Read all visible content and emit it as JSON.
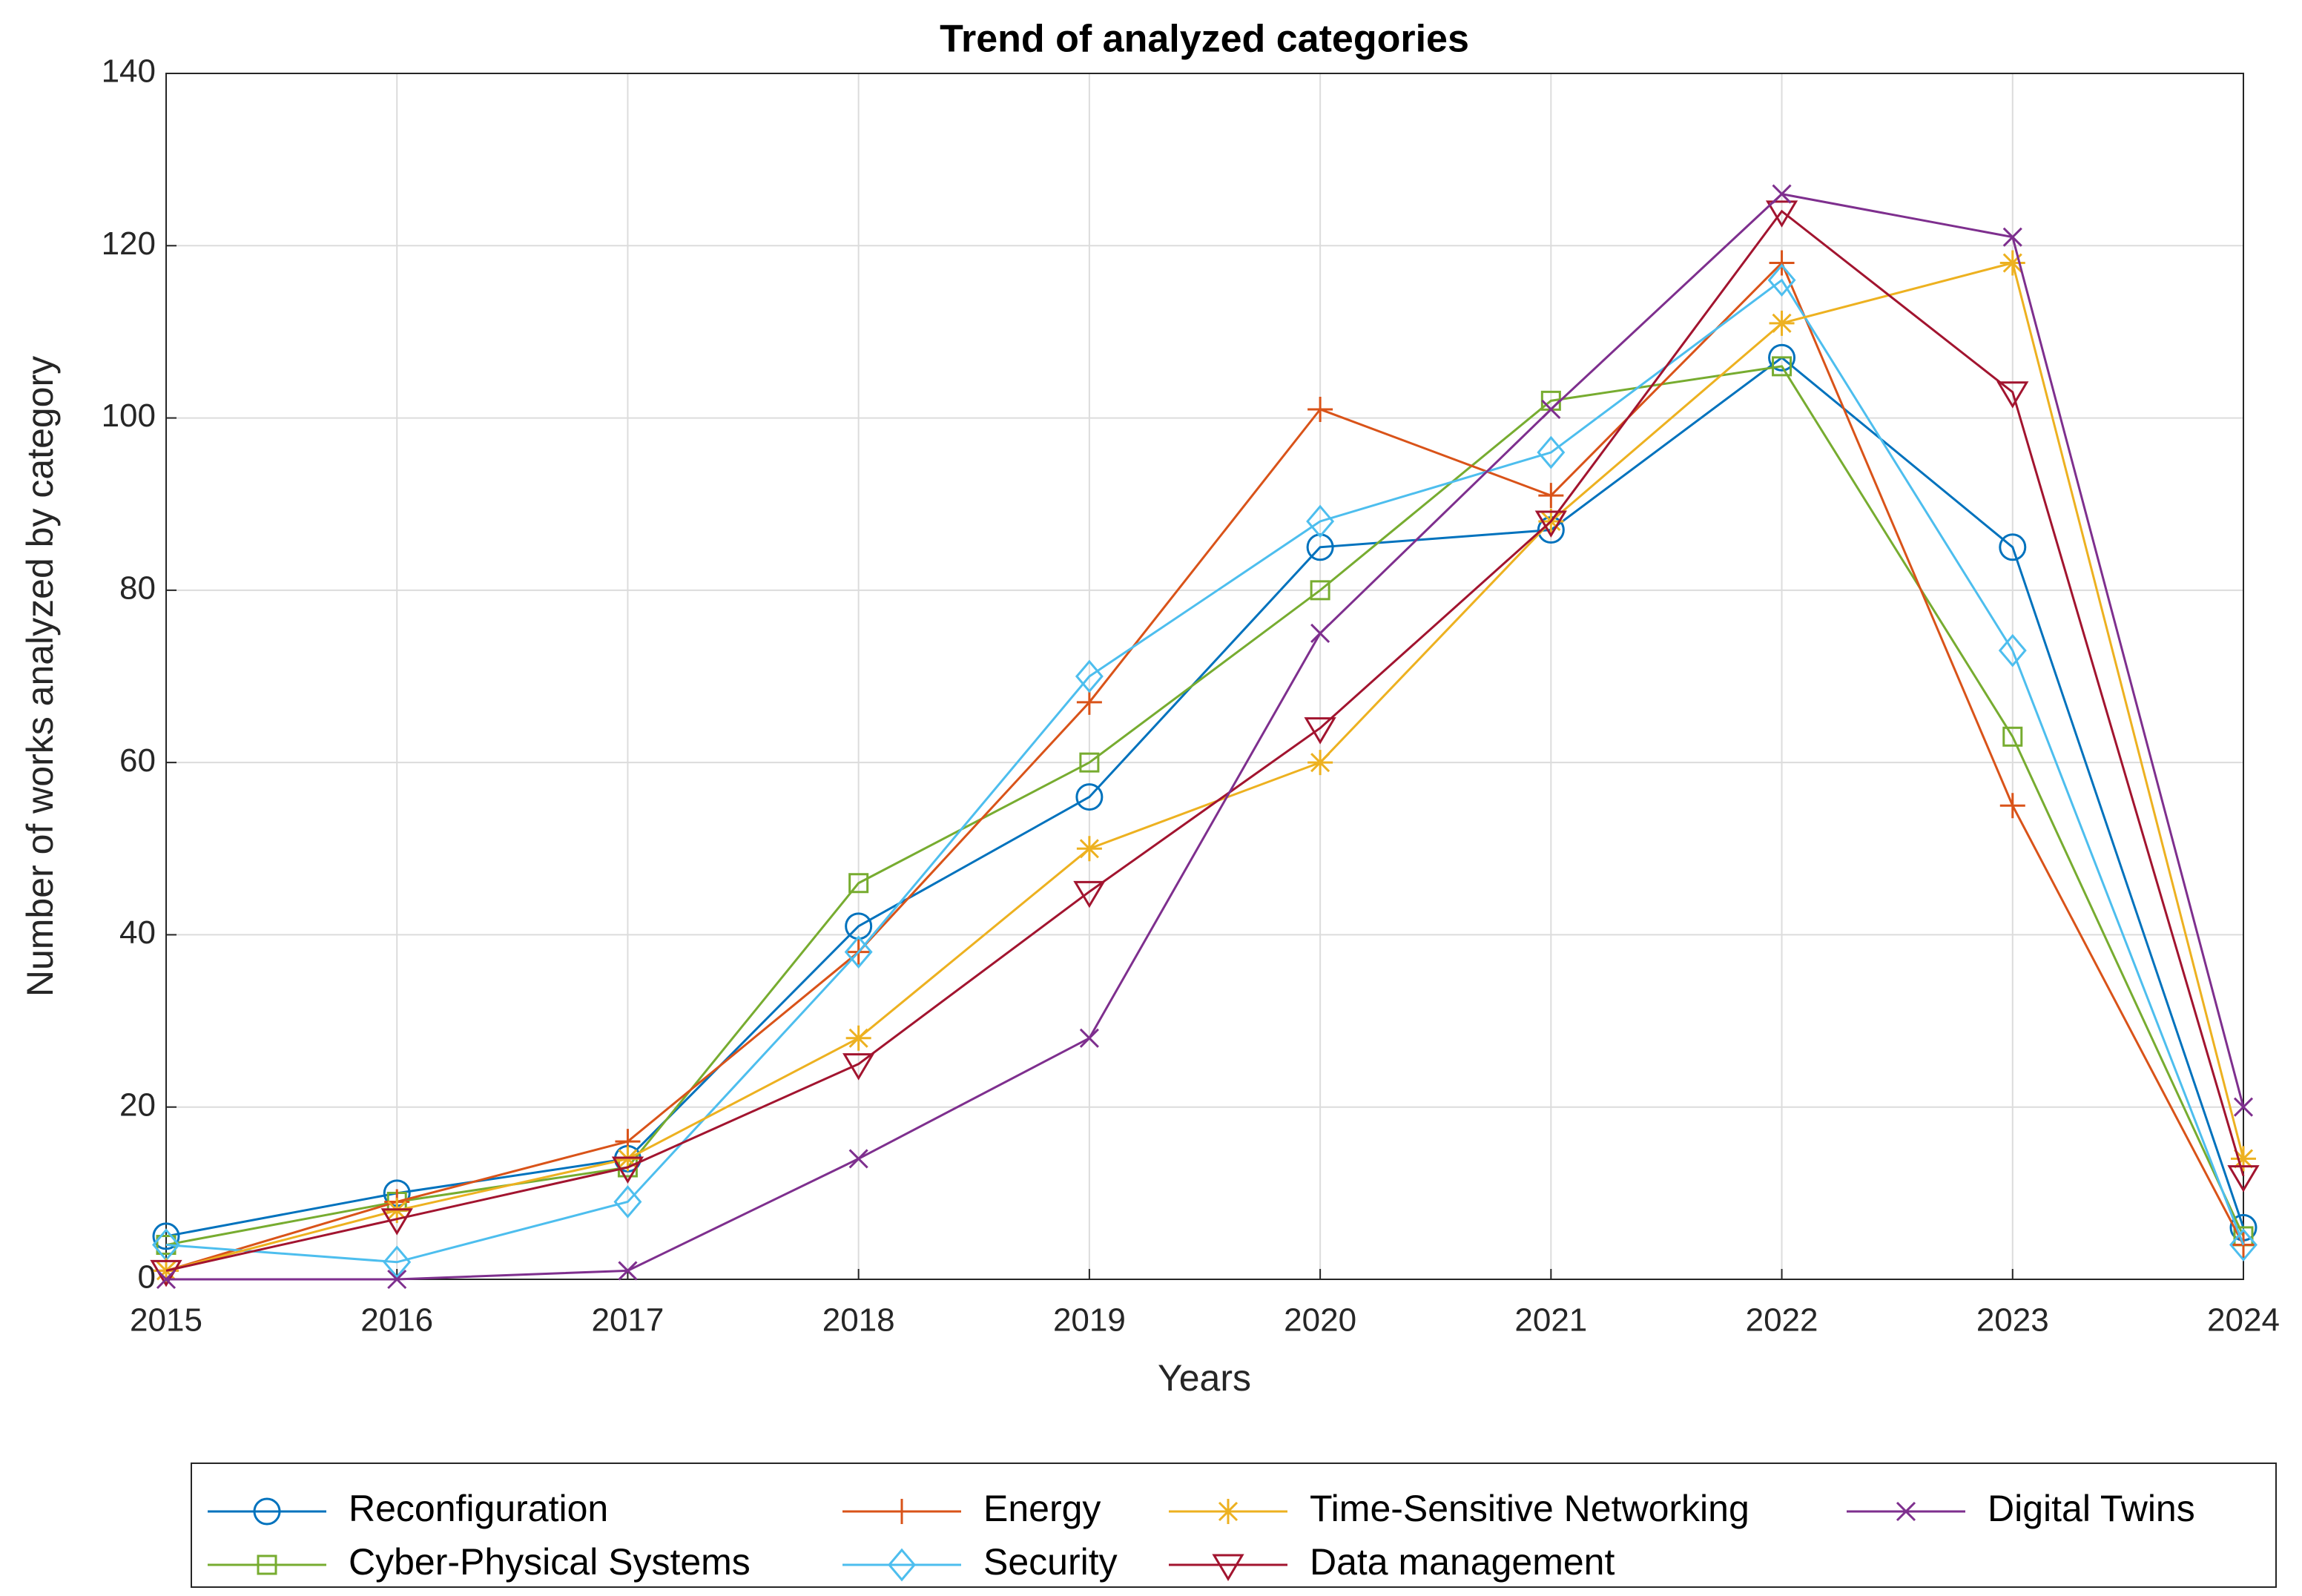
{
  "chart_data": {
    "type": "line",
    "title": "Trend of analyzed categories",
    "xlabel": "Years",
    "ylabel": "Number of works analyzed by category",
    "x": [
      2015,
      2016,
      2017,
      2018,
      2019,
      2020,
      2021,
      2022,
      2023,
      2024
    ],
    "xlim": [
      2015,
      2024
    ],
    "xticks": [
      2015,
      2016,
      2017,
      2018,
      2019,
      2020,
      2021,
      2022,
      2023,
      2024
    ],
    "ylim": [
      0,
      140
    ],
    "yticks": [
      0,
      20,
      40,
      60,
      80,
      100,
      120,
      140
    ],
    "grid": true,
    "legend": "bottom-outside",
    "series": [
      {
        "name": "Reconfiguration",
        "color": "#0072BD",
        "marker": "circle",
        "values": [
          5,
          10,
          14,
          41,
          56,
          85,
          87,
          107,
          85,
          6
        ]
      },
      {
        "name": "Cyber-Physical Systems",
        "color": "#77AC30",
        "marker": "square",
        "values": [
          4,
          9,
          13,
          46,
          60,
          80,
          102,
          106,
          63,
          5
        ]
      },
      {
        "name": "Energy",
        "color": "#D95319",
        "marker": "plus",
        "values": [
          1,
          9,
          16,
          38,
          67,
          101,
          91,
          118,
          55,
          4
        ]
      },
      {
        "name": "Security",
        "color": "#4DBEEE",
        "marker": "diamond",
        "values": [
          4,
          2,
          9,
          38,
          70,
          88,
          96,
          116,
          73,
          4
        ]
      },
      {
        "name": "Time-Sensitive Networking",
        "color": "#EDB120",
        "marker": "asterisk",
        "values": [
          1,
          8,
          14,
          28,
          50,
          60,
          88,
          111,
          118,
          14
        ]
      },
      {
        "name": "Data management",
        "color": "#A2142F",
        "marker": "triangle-down",
        "values": [
          1,
          7,
          13,
          25,
          45,
          64,
          88,
          124,
          103,
          12
        ]
      },
      {
        "name": "Digital Twins",
        "color": "#7E2F8E",
        "marker": "cross",
        "values": [
          0,
          0,
          1,
          14,
          28,
          75,
          101,
          126,
          121,
          20
        ]
      }
    ]
  }
}
